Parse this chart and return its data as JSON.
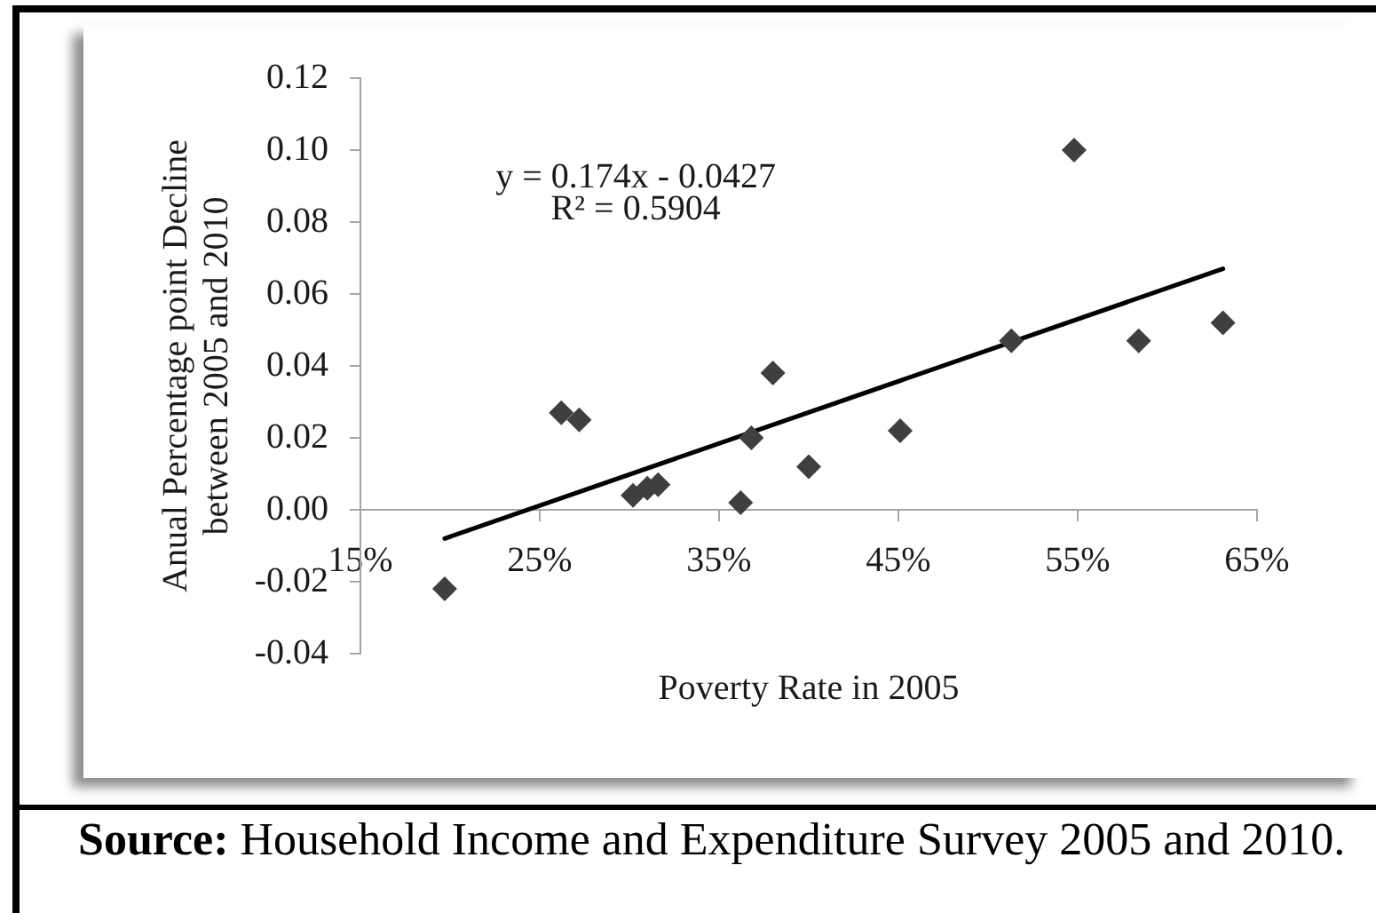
{
  "chart_data": {
    "type": "scatter",
    "xlabel": "Poverty Rate in 2005",
    "ylabel": "Anual Percentage point Decline between 2005 and 2010",
    "annotations": [
      "y = 0.174x - 0.0427",
      "R² = 0.5904",
      "Source: Household Income and Expenditure Survey 2005 and 2010."
    ],
    "xlim": [
      15,
      65
    ],
    "xticks": [
      {
        "value": 15,
        "label": "15%"
      },
      {
        "value": 25,
        "label": "25%"
      },
      {
        "value": 35,
        "label": "35%"
      },
      {
        "value": 45,
        "label": "45%"
      },
      {
        "value": 55,
        "label": "55%"
      },
      {
        "value": 65,
        "label": "65%"
      }
    ],
    "ylim": [
      -0.04,
      0.12
    ],
    "yticks": [
      {
        "value": -0.04,
        "label": "-0.04"
      },
      {
        "value": -0.02,
        "label": "-0.02"
      },
      {
        "value": 0,
        "label": "0.00"
      },
      {
        "value": 0.02,
        "label": "0.02"
      },
      {
        "value": 0.04,
        "label": "0.04"
      },
      {
        "value": 0.06,
        "label": "0.06"
      },
      {
        "value": 0.08,
        "label": "0.08"
      },
      {
        "value": 0.1,
        "label": "0.10"
      },
      {
        "value": 0.12,
        "label": "0.12"
      }
    ],
    "marker": "diamond",
    "series": [
      {
        "type": "scatter",
        "color": "#3f3f3f",
        "x": [
          19.7,
          26.2,
          27.2,
          30.2,
          31.0,
          31.6,
          36.2,
          36.8,
          38.0,
          40.0,
          45.1,
          51.3,
          54.8,
          58.4,
          63.1
        ],
        "values": [
          -0.022,
          0.027,
          0.025,
          0.004,
          0.006,
          0.007,
          0.002,
          0.02,
          0.038,
          0.012,
          0.022,
          0.047,
          0.1,
          0.047,
          0.052
        ]
      },
      {
        "type": "line",
        "color": "#000000",
        "marker": "none",
        "x": [
          19.7,
          63.1
        ],
        "values": [
          -0.008,
          0.067
        ]
      }
    ]
  }
}
